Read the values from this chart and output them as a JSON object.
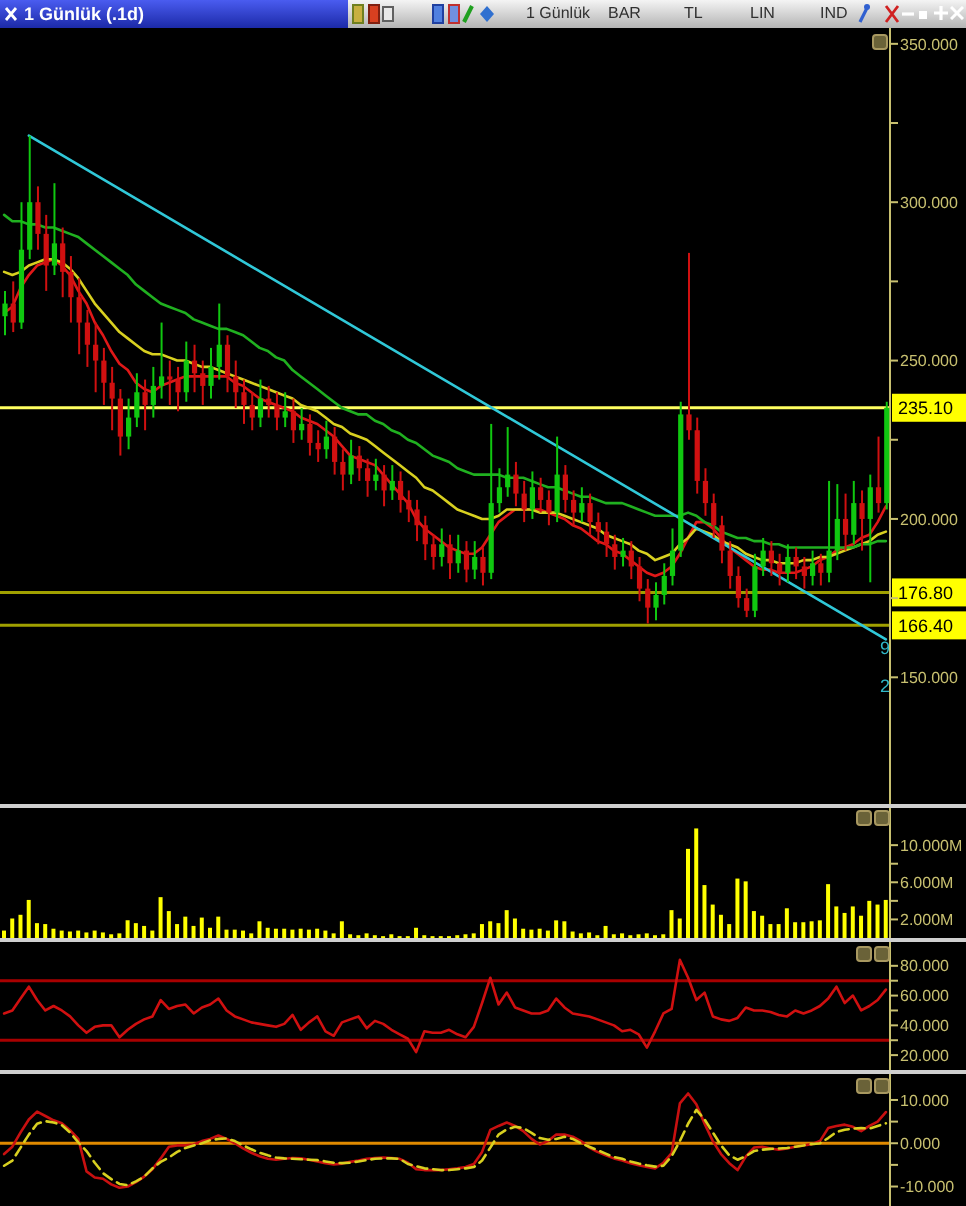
{
  "chart_data": [
    {
      "type": "candlestick",
      "title": "1 Günlük (.1d)",
      "annotations": [
        "1 Günlük",
        "BAR",
        "TL",
        "LIN",
        "IND",
        "9",
        "2"
      ],
      "categories": [
        null,
        null,
        null,
        null,
        null,
        null,
        null,
        null,
        null,
        null,
        null,
        null,
        null,
        null,
        null,
        null,
        null,
        null,
        null,
        null,
        null,
        null,
        null,
        null,
        null,
        null,
        null,
        null,
        null,
        null,
        null,
        null,
        null,
        null,
        null,
        null,
        null,
        null,
        null,
        null,
        null,
        null,
        null,
        null,
        null,
        null,
        null,
        null,
        null,
        null,
        null,
        null,
        null,
        null,
        null,
        null,
        null,
        null,
        null,
        null,
        null,
        null,
        null,
        null,
        null,
        null,
        null,
        null,
        null,
        null,
        null,
        null,
        null,
        null,
        null,
        null,
        null,
        null,
        null,
        null,
        null,
        null,
        null,
        null,
        null,
        null,
        null,
        null,
        null,
        null,
        null,
        null,
        null,
        null,
        null,
        null,
        null,
        null,
        null,
        null,
        null,
        null,
        null,
        null,
        null,
        null,
        null,
        null
      ],
      "ohlc": [
        [
          264,
          272,
          258,
          268
        ],
        [
          268,
          275,
          259,
          262
        ],
        [
          262,
          300,
          260,
          285
        ],
        [
          285,
          321,
          282,
          300
        ],
        [
          300,
          305,
          285,
          290
        ],
        [
          290,
          296,
          272,
          280
        ],
        [
          280,
          306,
          277,
          287
        ],
        [
          287,
          292,
          270,
          278
        ],
        [
          278,
          283,
          262,
          270
        ],
        [
          270,
          276,
          252,
          262
        ],
        [
          262,
          266,
          248,
          255
        ],
        [
          255,
          262,
          240,
          250
        ],
        [
          250,
          254,
          236,
          243
        ],
        [
          243,
          248,
          228,
          238
        ],
        [
          238,
          241,
          220,
          226
        ],
        [
          226,
          238,
          222,
          232
        ],
        [
          232,
          246,
          229,
          240
        ],
        [
          240,
          244,
          228,
          236
        ],
        [
          236,
          248,
          232,
          242
        ],
        [
          242,
          262,
          238,
          245
        ],
        [
          245,
          250,
          236,
          244
        ],
        [
          244,
          248,
          234,
          240
        ],
        [
          240,
          256,
          237,
          250
        ],
        [
          250,
          255,
          240,
          246
        ],
        [
          246,
          250,
          236,
          242
        ],
        [
          242,
          254,
          238,
          248
        ],
        [
          248,
          268,
          244,
          255
        ],
        [
          255,
          258,
          240,
          245
        ],
        [
          245,
          250,
          235,
          240
        ],
        [
          240,
          244,
          230,
          236
        ],
        [
          236,
          240,
          228,
          232
        ],
        [
          232,
          244,
          229,
          238
        ],
        [
          238,
          242,
          232,
          236
        ],
        [
          236,
          240,
          228,
          232
        ],
        [
          232,
          240,
          229,
          234
        ],
        [
          234,
          238,
          224,
          228
        ],
        [
          228,
          235,
          225,
          230
        ],
        [
          230,
          233,
          220,
          224
        ],
        [
          224,
          228,
          218,
          222
        ],
        [
          222,
          231,
          219,
          226
        ],
        [
          226,
          229,
          214,
          218
        ],
        [
          218,
          222,
          209,
          214
        ],
        [
          214,
          225,
          211,
          220
        ],
        [
          220,
          223,
          212,
          216
        ],
        [
          216,
          219,
          207,
          212
        ],
        [
          212,
          219,
          209,
          214
        ],
        [
          214,
          217,
          204,
          209
        ],
        [
          209,
          217,
          206,
          212
        ],
        [
          212,
          215,
          202,
          206
        ],
        [
          206,
          209,
          199,
          203
        ],
        [
          203,
          206,
          193,
          198
        ],
        [
          198,
          201,
          187,
          192
        ],
        [
          192,
          195,
          184,
          188
        ],
        [
          188,
          197,
          185,
          192
        ],
        [
          192,
          195,
          181,
          186
        ],
        [
          186,
          195,
          183,
          190
        ],
        [
          190,
          193,
          180,
          184
        ],
        [
          184,
          193,
          181,
          188
        ],
        [
          188,
          191,
          179,
          183
        ],
        [
          183,
          230,
          181,
          205
        ],
        [
          205,
          216,
          202,
          210
        ],
        [
          210,
          229,
          207,
          214
        ],
        [
          214,
          218,
          204,
          208
        ],
        [
          208,
          212,
          199,
          203
        ],
        [
          203,
          215,
          200,
          210
        ],
        [
          210,
          213,
          202,
          206
        ],
        [
          206,
          209,
          198,
          202
        ],
        [
          202,
          226,
          199,
          214
        ],
        [
          214,
          217,
          202,
          206
        ],
        [
          206,
          209,
          198,
          202
        ],
        [
          202,
          210,
          199,
          205
        ],
        [
          205,
          208,
          195,
          199
        ],
        [
          199,
          202,
          192,
          196
        ],
        [
          196,
          199,
          188,
          192
        ],
        [
          192,
          195,
          184,
          188
        ],
        [
          188,
          194,
          185,
          190
        ],
        [
          190,
          193,
          181,
          185
        ],
        [
          185,
          188,
          174,
          178
        ],
        [
          178,
          181,
          167,
          172
        ],
        [
          172,
          180,
          168,
          176
        ],
        [
          176,
          186,
          173,
          182
        ],
        [
          182,
          197,
          179,
          190
        ],
        [
          190,
          237,
          188,
          233
        ],
        [
          233,
          284,
          225,
          228
        ],
        [
          228,
          232,
          208,
          212
        ],
        [
          212,
          216,
          201,
          205
        ],
        [
          205,
          208,
          194,
          198
        ],
        [
          198,
          201,
          186,
          190
        ],
        [
          190,
          193,
          178,
          182
        ],
        [
          182,
          185,
          172,
          175
        ],
        [
          175,
          178,
          169,
          171
        ],
        [
          171,
          189,
          169,
          185
        ],
        [
          185,
          194,
          182,
          190
        ],
        [
          190,
          193,
          182,
          186
        ],
        [
          186,
          189,
          179,
          183
        ],
        [
          183,
          192,
          180,
          188
        ],
        [
          188,
          191,
          181,
          185
        ],
        [
          185,
          188,
          178,
          182
        ],
        [
          182,
          190,
          179,
          186
        ],
        [
          186,
          189,
          179,
          183
        ],
        [
          183,
          212,
          180,
          190
        ],
        [
          190,
          211,
          187,
          200
        ],
        [
          200,
          208,
          190,
          195
        ],
        [
          195,
          212,
          192,
          205
        ],
        [
          205,
          209,
          190,
          200
        ],
        [
          200,
          214,
          180,
          210
        ],
        [
          210,
          226,
          202,
          205
        ],
        [
          205,
          237,
          203,
          235.1
        ]
      ],
      "series": [
        {
          "type": "line",
          "color": "#e01818",
          "values": [
            265,
            267,
            273,
            277,
            280,
            281,
            282,
            280,
            277,
            272,
            268,
            262,
            258,
            253,
            249,
            247,
            243,
            241,
            240,
            242,
            243,
            244,
            245,
            245,
            245,
            245,
            245,
            245,
            243,
            242,
            240,
            238,
            237,
            236,
            235,
            234,
            232,
            231,
            230,
            228,
            226,
            223,
            220,
            219,
            218,
            217,
            214,
            211,
            208,
            205,
            200,
            197,
            195,
            193,
            191,
            190,
            189,
            189,
            191,
            195,
            199,
            201,
            203,
            203,
            203,
            203,
            202,
            201,
            200,
            198,
            197,
            195,
            193,
            192,
            190,
            189,
            187,
            185,
            183,
            182,
            183,
            185,
            189,
            194,
            199,
            199,
            197,
            194,
            191,
            189,
            187,
            185,
            184,
            184,
            183,
            183,
            183,
            184,
            185,
            187,
            188,
            190,
            191,
            192,
            194,
            195,
            199,
            204
          ]
        },
        {
          "type": "line",
          "color": "#d8d020",
          "values": [
            278,
            277,
            278,
            280,
            281,
            282,
            282,
            281,
            279,
            276,
            272,
            268,
            265,
            262,
            259,
            257,
            255,
            253,
            252,
            252,
            251,
            250,
            250,
            249,
            248,
            248,
            247,
            246,
            245,
            244,
            243,
            242,
            241,
            240,
            239,
            238,
            236,
            235,
            234,
            232,
            230,
            229,
            227,
            226,
            225,
            223,
            221,
            219,
            217,
            215,
            213,
            210,
            209,
            207,
            205,
            203,
            202,
            201,
            200,
            200,
            201,
            203,
            203,
            203,
            203,
            202,
            202,
            202,
            201,
            200,
            199,
            198,
            197,
            195,
            194,
            193,
            192,
            190,
            189,
            187,
            188,
            189,
            192,
            194,
            197,
            196,
            195,
            193,
            192,
            191,
            189,
            188,
            187,
            187,
            186,
            186,
            186,
            187,
            187,
            188,
            188,
            189,
            190,
            191,
            192,
            193,
            195,
            196
          ]
        },
        {
          "type": "line",
          "color": "#20b020",
          "values": [
            296,
            294,
            294,
            293,
            293,
            292,
            292,
            291,
            290,
            289,
            287,
            285,
            283,
            281,
            279,
            277,
            274,
            272,
            270,
            268,
            267,
            266,
            265,
            263,
            262,
            261,
            260,
            260,
            259,
            258,
            256,
            254,
            253,
            251,
            250,
            247,
            245,
            243,
            241,
            239,
            237,
            235,
            234,
            233,
            233,
            231,
            230,
            228,
            227,
            225,
            224,
            222,
            220,
            219,
            218,
            216,
            215,
            214,
            214,
            214,
            214,
            213,
            213,
            213,
            212,
            211,
            210,
            210,
            209,
            208,
            207,
            207,
            206,
            205,
            205,
            205,
            204,
            203,
            202,
            201,
            201,
            201,
            201,
            202,
            201,
            199,
            198,
            196,
            195,
            194,
            194,
            193,
            193,
            192,
            192,
            191,
            191,
            191,
            191,
            191,
            191,
            191,
            191,
            191,
            192,
            192,
            193,
            193
          ]
        },
        {
          "type": "line",
          "color": "#30c8d8",
          "values": [
            null,
            null,
            null,
            321,
            null,
            null,
            null,
            null,
            null,
            null,
            null,
            null,
            null,
            null,
            null,
            null,
            null,
            null,
            null,
            null,
            null,
            null,
            null,
            null,
            null,
            null,
            null,
            null,
            null,
            null,
            null,
            null,
            null,
            null,
            null,
            null,
            null,
            null,
            null,
            null,
            null,
            null,
            null,
            null,
            null,
            null,
            null,
            null,
            null,
            null,
            null,
            null,
            null,
            null,
            null,
            null,
            null,
            null,
            null,
            null,
            null,
            null,
            null,
            null,
            null,
            null,
            null,
            null,
            null,
            null,
            null,
            null,
            null,
            null,
            null,
            null,
            null,
            null,
            null,
            null,
            null,
            null,
            null,
            null,
            null,
            null,
            null,
            null,
            null,
            null,
            null,
            null,
            null,
            null,
            null,
            null,
            null,
            null,
            null,
            null,
            null,
            null,
            null,
            null,
            null,
            null,
            null,
            162
          ]
        }
      ],
      "ylim": [
        110,
        355
      ],
      "yticks": [
        {
          "value": 150,
          "label": "150.000"
        },
        {
          "value": 175,
          "label": null
        },
        {
          "value": 200,
          "label": "200.000"
        },
        {
          "value": 225,
          "label": null
        },
        {
          "value": 250,
          "label": "250.000"
        },
        {
          "value": 275,
          "label": null
        },
        {
          "value": 300,
          "label": "300.000"
        },
        {
          "value": 325,
          "label": null
        },
        {
          "value": 350,
          "label": "350.000"
        }
      ],
      "ref_lines": [
        {
          "axis": "y",
          "value": 235.1,
          "label": "235.10",
          "color": "#ffff60"
        },
        {
          "axis": "y",
          "value": 176.8,
          "label": "176.80",
          "color": "#a0a000"
        },
        {
          "axis": "y",
          "value": 166.4,
          "label": "166.40",
          "color": "#a0a000"
        }
      ],
      "tick_labels": "y"
    },
    {
      "type": "bar",
      "categories": [
        null,
        null,
        null,
        null,
        null,
        null,
        null,
        null,
        null,
        null,
        null,
        null,
        null,
        null,
        null,
        null,
        null,
        null,
        null,
        null,
        null,
        null,
        null,
        null,
        null,
        null,
        null,
        null,
        null,
        null,
        null,
        null,
        null,
        null,
        null,
        null,
        null,
        null,
        null,
        null,
        null,
        null,
        null,
        null,
        null,
        null,
        null,
        null,
        null,
        null,
        null,
        null,
        null,
        null,
        null,
        null,
        null,
        null,
        null,
        null,
        null,
        null,
        null,
        null,
        null,
        null,
        null,
        null,
        null,
        null,
        null,
        null,
        null,
        null,
        null,
        null,
        null,
        null,
        null,
        null,
        null,
        null,
        null,
        null,
        null,
        null,
        null,
        null,
        null,
        null,
        null,
        null,
        null,
        null,
        null,
        null,
        null,
        null,
        null,
        null,
        null,
        null,
        null,
        null,
        null,
        null,
        null,
        null
      ],
      "values": [
        0.8,
        2.1,
        2.5,
        4.1,
        1.6,
        1.5,
        1.0,
        0.8,
        0.7,
        0.8,
        0.6,
        0.8,
        0.6,
        0.4,
        0.5,
        1.9,
        1.6,
        1.3,
        0.8,
        4.4,
        2.9,
        1.5,
        2.3,
        1.3,
        2.2,
        1.1,
        2.3,
        0.9,
        0.9,
        0.8,
        0.5,
        1.8,
        1.1,
        1.0,
        1.0,
        0.9,
        1.0,
        0.9,
        1.0,
        0.8,
        0.5,
        1.8,
        0.4,
        0.3,
        0.5,
        0.3,
        0.2,
        0.4,
        0.2,
        0.2,
        1.1,
        0.3,
        0.2,
        0.2,
        0.2,
        0.3,
        0.4,
        0.5,
        1.5,
        1.8,
        1.6,
        3.0,
        2.1,
        1.0,
        0.9,
        1.0,
        0.8,
        1.9,
        1.8,
        0.7,
        0.5,
        0.6,
        0.3,
        1.3,
        0.4,
        0.5,
        0.3,
        0.4,
        0.5,
        0.3,
        0.4,
        3.0,
        2.1,
        9.6,
        11.8,
        5.7,
        3.6,
        2.5,
        1.5,
        6.4,
        6.1,
        2.9,
        2.4,
        1.5,
        1.5,
        3.2,
        1.7,
        1.7,
        1.8,
        1.9,
        5.8,
        3.4,
        2.7,
        3.4,
        2.4,
        4.0,
        3.6,
        4.1
      ],
      "color": "#ffff00",
      "ylim": [
        0,
        14
      ],
      "yticks": [
        {
          "value": 2,
          "label": "2.000M"
        },
        {
          "value": 4,
          "label": null
        },
        {
          "value": 6,
          "label": "6.000M"
        },
        {
          "value": 8,
          "label": null
        },
        {
          "value": 10,
          "label": "10.000M"
        }
      ],
      "tick_labels": "y"
    },
    {
      "type": "line",
      "categories": [
        null,
        null,
        null,
        null,
        null,
        null,
        null,
        null,
        null,
        null,
        null,
        null,
        null,
        null,
        null,
        null,
        null,
        null,
        null,
        null,
        null,
        null,
        null,
        null,
        null,
        null,
        null,
        null,
        null,
        null,
        null,
        null,
        null,
        null,
        null,
        null,
        null,
        null,
        null,
        null,
        null,
        null,
        null,
        null,
        null,
        null,
        null,
        null,
        null,
        null,
        null,
        null,
        null,
        null,
        null,
        null,
        null,
        null,
        null,
        null,
        null,
        null,
        null,
        null,
        null,
        null,
        null,
        null,
        null,
        null,
        null,
        null,
        null,
        null,
        null,
        null,
        null,
        null,
        null,
        null,
        null,
        null,
        null,
        null,
        null,
        null,
        null,
        null,
        null,
        null,
        null,
        null,
        null,
        null,
        null,
        null,
        null,
        null,
        null,
        null,
        null,
        null,
        null,
        null,
        null,
        null,
        null,
        null
      ],
      "series": [
        {
          "color": "#d01010",
          "values": [
            48,
            50,
            58,
            66,
            57,
            50,
            53,
            50,
            46,
            40,
            35,
            39,
            40,
            40,
            32,
            37,
            41,
            44,
            46,
            57,
            51,
            53,
            54,
            48,
            52,
            54,
            58,
            50,
            46,
            44,
            42,
            41,
            40,
            39,
            41,
            47,
            37,
            42,
            46,
            36,
            33,
            42,
            44,
            46,
            38,
            43,
            41,
            37,
            34,
            31,
            22,
            36,
            35,
            35,
            37,
            34,
            32,
            39,
            55,
            72,
            54,
            62,
            52,
            50,
            48,
            48,
            50,
            58,
            52,
            48,
            47,
            46,
            44,
            42,
            40,
            36,
            37,
            34,
            25,
            36,
            48,
            51,
            84,
            72,
            57,
            62,
            46,
            44,
            43,
            45,
            52,
            50,
            50,
            49,
            47,
            46,
            50,
            48,
            50,
            53,
            58,
            66,
            55,
            60,
            50,
            53,
            57,
            64
          ]
        }
      ],
      "ylim": [
        10,
        96
      ],
      "yticks": [
        {
          "value": 20,
          "label": "20.000"
        },
        {
          "value": 30,
          "label": null
        },
        {
          "value": 40,
          "label": "40.000"
        },
        {
          "value": 50,
          "label": null
        },
        {
          "value": 60,
          "label": "60.000"
        },
        {
          "value": 70,
          "label": null
        },
        {
          "value": 80,
          "label": "80.000"
        }
      ],
      "ref_lines": [
        {
          "axis": "y",
          "value": 70,
          "color": "#a80000"
        },
        {
          "axis": "y",
          "value": 30,
          "color": "#a80000"
        }
      ],
      "tick_labels": "y"
    },
    {
      "type": "line",
      "categories": [
        null,
        null,
        null,
        null,
        null,
        null,
        null,
        null,
        null,
        null,
        null,
        null,
        null,
        null,
        null,
        null,
        null,
        null,
        null,
        null,
        null,
        null,
        null,
        null,
        null,
        null,
        null,
        null,
        null,
        null,
        null,
        null,
        null,
        null,
        null,
        null,
        null,
        null,
        null,
        null,
        null,
        null,
        null,
        null,
        null,
        null,
        null,
        null,
        null,
        null,
        null,
        null,
        null,
        null,
        null,
        null,
        null,
        null,
        null,
        null,
        null,
        null,
        null,
        null,
        null,
        null,
        null,
        null,
        null,
        null,
        null,
        null,
        null,
        null,
        null,
        null,
        null,
        null,
        null,
        null,
        null,
        null,
        null,
        null,
        null,
        null,
        null,
        null,
        null,
        null,
        null,
        null,
        null,
        null,
        null,
        null,
        null,
        null,
        null,
        null,
        null,
        null,
        null,
        null,
        null,
        null,
        null,
        null
      ],
      "series": [
        {
          "color": "#c81010",
          "values": [
            -2.5,
            -0.8,
            2.5,
            5.5,
            7.3,
            6.3,
            5.3,
            4.6,
            3.0,
            1.0,
            -6.5,
            -7.9,
            -8.2,
            -9.5,
            -10.3,
            -10.0,
            -9.0,
            -7.7,
            -6.0,
            -3.5,
            -0.8,
            -0.5,
            -0.5,
            -0.3,
            0.5,
            1.0,
            1.8,
            1.0,
            0,
            -1.2,
            -2.2,
            -3.0,
            -3.6,
            -3.8,
            -3.6,
            -3.4,
            -3.5,
            -3.8,
            -4.2,
            -4.6,
            -4.9,
            -4.7,
            -4.3,
            -4.0,
            -3.6,
            -3.4,
            -3.3,
            -3.4,
            -3.6,
            -4.5,
            -6.0,
            -6.2,
            -6.2,
            -6.2,
            -6.0,
            -5.8,
            -5.5,
            -4.8,
            -2.0,
            3.1,
            4.0,
            4.8,
            4.0,
            2.8,
            1.0,
            -0.3,
            0.5,
            2.0,
            2.0,
            1.5,
            0.5,
            -1.0,
            -2.0,
            -2.8,
            -3.5,
            -4.0,
            -4.6,
            -5.1,
            -5.5,
            -5.8,
            -4.5,
            -2.3,
            9.2,
            11.5,
            9.0,
            4.5,
            0.5,
            -2.5,
            -4.6,
            -6.2,
            -3.1,
            -1.0,
            -0.8,
            -1.2,
            -1.5,
            -1.2,
            -0.8,
            -0.5,
            -0.2,
            0.5,
            3.5,
            4.0,
            4.3,
            3.8,
            2.8,
            4.0,
            5.0,
            7.2
          ]
        },
        {
          "color": "#d8d020",
          "line_style": "dashed",
          "values": [
            -5.2,
            -4.0,
            -1.0,
            2.0,
            4.5,
            5.1,
            4.8,
            4.2,
            2.5,
            0.2,
            -1.8,
            -4.5,
            -6.9,
            -8.3,
            -9.4,
            -9.7,
            -8.8,
            -7.7,
            -5.8,
            -4.3,
            -3.3,
            -2.0,
            -1.1,
            -0.5,
            0,
            0.7,
            1.0,
            1.1,
            0.5,
            -0.5,
            -1.4,
            -2.2,
            -2.8,
            -3.3,
            -3.5,
            -3.6,
            -3.7,
            -3.8,
            -3.9,
            -4.2,
            -4.5,
            -4.6,
            -4.5,
            -4.2,
            -3.9,
            -3.6,
            -3.5,
            -3.5,
            -3.6,
            -4.8,
            -5.3,
            -5.8,
            -6.0,
            -6.2,
            -6.2,
            -6.0,
            -5.8,
            -5.5,
            -4.0,
            -1.0,
            2.0,
            3.2,
            3.8,
            3.5,
            2.4,
            1.2,
            0.8,
            1.0,
            1.5,
            1.0,
            0,
            -0.8,
            -1.6,
            -2.4,
            -3.2,
            -3.6,
            -4.2,
            -4.7,
            -5.1,
            -5.4,
            -5.2,
            -3.0,
            0.5,
            4.5,
            7.7,
            5.5,
            2.5,
            -0.5,
            -2.8,
            -3.8,
            -3.0,
            -1.8,
            -1.5,
            -1.3,
            -1.2,
            -1.1,
            -0.8,
            -0.5,
            -0.2,
            0,
            1.2,
            2.6,
            3.1,
            3.4,
            3.5,
            3.4,
            4.0,
            4.6
          ]
        }
      ],
      "ylim": [
        -14.5,
        16
      ],
      "yticks": [
        {
          "value": -10,
          "label": "-10.000"
        },
        {
          "value": -5,
          "label": null
        },
        {
          "value": 0,
          "label": "0.000"
        },
        {
          "value": 5,
          "label": null
        },
        {
          "value": 10,
          "label": "10.000"
        }
      ],
      "ref_lines": [
        {
          "axis": "y",
          "value": 0,
          "color": "#e08a00"
        }
      ],
      "tick_labels": "y"
    }
  ]
}
